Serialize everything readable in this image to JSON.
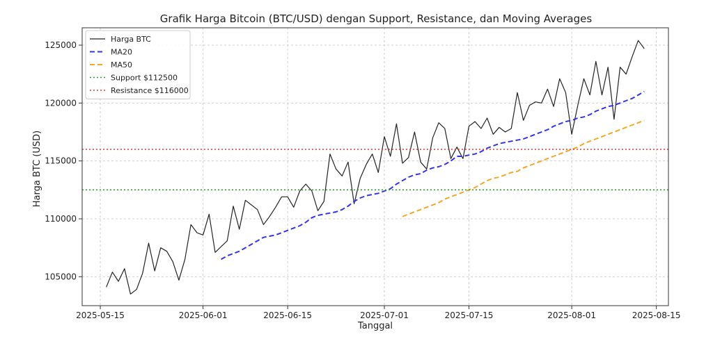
{
  "chart_data": {
    "type": "line",
    "title": "Grafik Harga Bitcoin (BTC/USD) dengan Support, Resistance, dan Moving Averages",
    "xlabel": "Tanggal",
    "ylabel": "Harga BTC (USD)",
    "x_start": "2025-05-16",
    "x_ticks": [
      "2025-05-15",
      "2025-06-01",
      "2025-06-15",
      "2025-07-01",
      "2025-07-15",
      "2025-08-01",
      "2025-08-15"
    ],
    "xlim": [
      "2025-05-12",
      "2025-08-17"
    ],
    "y_ticks": [
      105000,
      110000,
      115000,
      120000,
      125000
    ],
    "ylim": [
      102500,
      126500
    ],
    "grid": true,
    "legend_position": "top-left",
    "series": [
      {
        "name": "Harga BTC",
        "color": "#222222",
        "style": "solid",
        "values": [
          104100,
          105400,
          104600,
          105700,
          103500,
          103900,
          105300,
          107900,
          105500,
          107500,
          107200,
          106300,
          104700,
          106500,
          109500,
          108800,
          108600,
          110400,
          107100,
          107600,
          108100,
          111100,
          109100,
          111600,
          111200,
          110800,
          109500,
          110200,
          111000,
          111900,
          111900,
          111000,
          112400,
          113000,
          112400,
          110700,
          111500,
          115600,
          114300,
          113700,
          114900,
          111300,
          113500,
          114700,
          115600,
          114000,
          117100,
          115400,
          118200,
          114800,
          115300,
          117500,
          114900,
          114300,
          117000,
          118300,
          117800,
          115200,
          116200,
          115200,
          118000,
          118400,
          117800,
          118700,
          117300,
          117900,
          117500,
          117800,
          120900,
          118500,
          119800,
          120100,
          120000,
          121200,
          119700,
          122100,
          120900,
          117300,
          119800,
          122100,
          120700,
          123600,
          120700,
          123100,
          118600,
          123100,
          122500,
          124000,
          125400,
          124700
        ]
      },
      {
        "name": "MA20",
        "color": "#3333ee",
        "style": "dashed",
        "start_index": 19,
        "values": [
          106500,
          106800,
          107000,
          107200,
          107500,
          107800,
          108100,
          108400,
          108500,
          108600,
          108800,
          109000,
          109200,
          109400,
          109700,
          110100,
          110300,
          110400,
          110500,
          110600,
          110800,
          111100,
          111500,
          111800,
          112000,
          112100,
          112200,
          112400,
          112600,
          113000,
          113300,
          113600,
          113800,
          113900,
          114200,
          114400,
          114500,
          114700,
          115000,
          115400,
          115400,
          115500,
          115600,
          115800,
          116100,
          116300,
          116500,
          116600,
          116700,
          116800,
          116900,
          117100,
          117300,
          117500,
          117700,
          118000,
          118200,
          118400,
          118500,
          118700,
          118800,
          119000,
          119300,
          119500,
          119700,
          119800,
          120000,
          120200,
          120400,
          120700,
          121000
        ]
      },
      {
        "name": "MA50",
        "color": "#f5a623",
        "style": "dashed",
        "start_index": 49,
        "values": [
          110200,
          110400,
          110600,
          110800,
          111000,
          111200,
          111400,
          111700,
          111900,
          112100,
          112300,
          112500,
          112700,
          113000,
          113300,
          113500,
          113600,
          113800,
          114000,
          114100,
          114400,
          114600,
          114800,
          115000,
          115200,
          115400,
          115600,
          115800,
          116000,
          116200,
          116500,
          116700,
          116900,
          117100,
          117300,
          117500,
          117700,
          117900,
          118100,
          118300,
          118500
        ]
      },
      {
        "name": "Support $112500",
        "color": "#2ca02c",
        "style": "dotted",
        "level": 112500
      },
      {
        "name": "Resistance $116000",
        "color": "#ee3333",
        "style": "dotted",
        "level": 116000
      }
    ]
  }
}
